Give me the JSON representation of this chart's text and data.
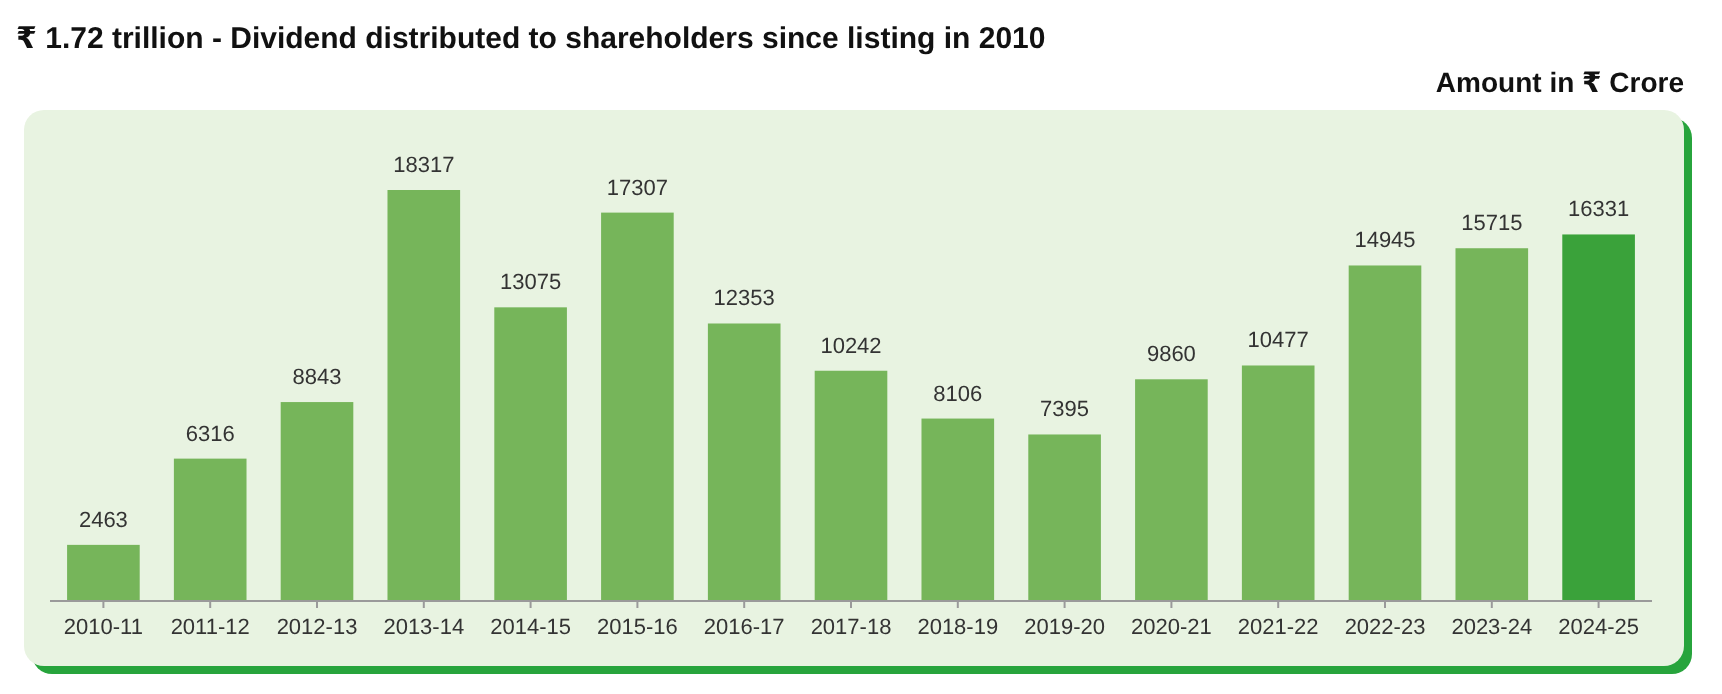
{
  "chart_data": {
    "type": "bar",
    "title": "₹ 1.72 trillion - Dividend distributed to shareholders since listing in 2010",
    "subtitle": "Amount in ₹ Crore",
    "categories": [
      "2010-11",
      "2011-12",
      "2012-13",
      "2013-14",
      "2014-15",
      "2015-16",
      "2016-17",
      "2017-18",
      "2018-19",
      "2019-20",
      "2020-21",
      "2021-22",
      "2022-23",
      "2023-24",
      "2024-25"
    ],
    "values": [
      2463,
      6316,
      8843,
      18317,
      13075,
      17307,
      12353,
      10242,
      8106,
      7395,
      9860,
      10477,
      14945,
      15715,
      16331
    ],
    "colors": [
      "#76b55a",
      "#76b55a",
      "#76b55a",
      "#76b55a",
      "#76b55a",
      "#76b55a",
      "#76b55a",
      "#76b55a",
      "#76b55a",
      "#76b55a",
      "#76b55a",
      "#76b55a",
      "#76b55a",
      "#76b55a",
      "#3aa23a"
    ],
    "data_labels": true
  }
}
